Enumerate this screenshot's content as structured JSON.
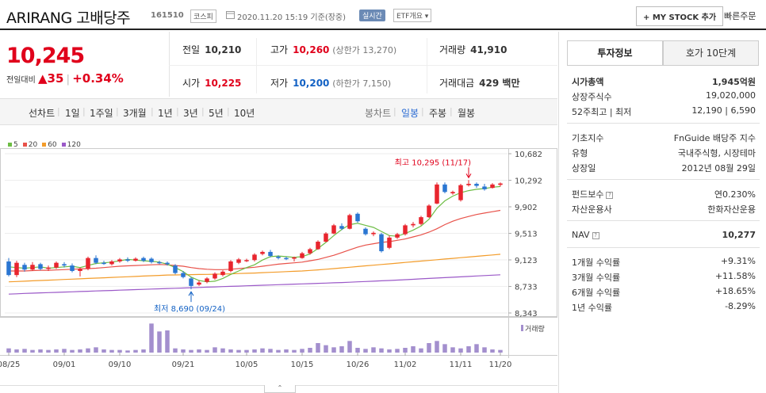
{
  "header": {
    "title": "ARIRANG 고배당주",
    "code": "161510",
    "market": "코스피",
    "datetime": "2020.11.20 15:19  기준(장중)",
    "realtime": "실시간",
    "etf_info": "ETF개요",
    "my_stock": "+ MY STOCK 추가",
    "quick_order": "빠른주문"
  },
  "quote": {
    "price": "10,245",
    "change_label": "전일대비",
    "change_arrow": "▲",
    "change": "35",
    "change_rate": "+0.34%",
    "prev_label": "전일",
    "prev": "10,210",
    "high_label": "고가",
    "high": "10,260",
    "upper_limit": "(상한가 13,270)",
    "volume_label": "거래량",
    "volume": "41,910",
    "open_label": "시가",
    "open": "10,225",
    "low_label": "저가",
    "low": "10,200",
    "lower_limit": "(하한가 7,150)",
    "amount_label": "거래대금",
    "amount": "429 백만"
  },
  "tabs": {
    "line_chart": "선차트",
    "periods": [
      "1일",
      "1주일",
      "3개월",
      "1년",
      "3년",
      "5년",
      "10년"
    ],
    "candle_chart": "봉차트",
    "candle_periods": [
      "일봉",
      "주봉",
      "월봉"
    ],
    "active_candle": "일봉"
  },
  "legend": [
    {
      "label": "5",
      "color": "#6dbd45"
    },
    {
      "label": "20",
      "color": "#e8524a"
    },
    {
      "label": "60",
      "color": "#f39c2a"
    },
    {
      "label": "120",
      "color": "#9b59c8"
    }
  ],
  "chart_data": {
    "type": "candlestick",
    "x_ticks": [
      "08/25",
      "09/01",
      "09/10",
      "09/21",
      "10/05",
      "10/15",
      "10/26",
      "11/02",
      "11/11",
      "11/20"
    ],
    "y_ticks": [
      "10,682",
      "10,292",
      "9,902",
      "9,513",
      "9,123",
      "8,733",
      "8,343"
    ],
    "ylim": [
      8343,
      10682
    ],
    "annotation_high": "최고 10,295 (11/17)",
    "annotation_low": "최저 8,690 (09/24)",
    "volume_label": "거래량",
    "candles": [
      {
        "o": 9100,
        "c": 8900,
        "h": 9150,
        "l": 8880
      },
      {
        "o": 8900,
        "c": 9080,
        "h": 9110,
        "l": 8870
      },
      {
        "o": 9050,
        "c": 8980,
        "h": 9080,
        "l": 8950
      },
      {
        "o": 8980,
        "c": 9050,
        "h": 9090,
        "l": 8960
      },
      {
        "o": 9060,
        "c": 8990,
        "h": 9080,
        "l": 8970
      },
      {
        "o": 8990,
        "c": 9010,
        "h": 9040,
        "l": 8960
      },
      {
        "o": 9010,
        "c": 9080,
        "h": 9100,
        "l": 8990
      },
      {
        "o": 9060,
        "c": 9040,
        "h": 9090,
        "l": 9010
      },
      {
        "o": 9040,
        "c": 8960,
        "h": 9070,
        "l": 8940
      },
      {
        "o": 8960,
        "c": 8990,
        "h": 9010,
        "l": 8880
      },
      {
        "o": 8990,
        "c": 9150,
        "h": 9170,
        "l": 8970
      },
      {
        "o": 9150,
        "c": 9080,
        "h": 9190,
        "l": 9060
      },
      {
        "o": 9080,
        "c": 9070,
        "h": 9110,
        "l": 9050
      },
      {
        "o": 9060,
        "c": 9100,
        "h": 9120,
        "l": 9040
      },
      {
        "o": 9100,
        "c": 9130,
        "h": 9150,
        "l": 9080
      },
      {
        "o": 9130,
        "c": 9110,
        "h": 9160,
        "l": 9090
      },
      {
        "o": 9110,
        "c": 9140,
        "h": 9160,
        "l": 9100
      },
      {
        "o": 9150,
        "c": 9110,
        "h": 9170,
        "l": 9090
      },
      {
        "o": 9140,
        "c": 9090,
        "h": 9160,
        "l": 9070
      },
      {
        "o": 9090,
        "c": 9080,
        "h": 9110,
        "l": 9060
      },
      {
        "o": 9080,
        "c": 9060,
        "h": 9100,
        "l": 9040
      },
      {
        "o": 9040,
        "c": 8930,
        "h": 9060,
        "l": 8910
      },
      {
        "o": 8930,
        "c": 8870,
        "h": 8960,
        "l": 8850
      },
      {
        "o": 8850,
        "c": 8740,
        "h": 8870,
        "l": 8690
      },
      {
        "o": 8760,
        "c": 8790,
        "h": 8820,
        "l": 8740
      },
      {
        "o": 8800,
        "c": 8850,
        "h": 8870,
        "l": 8780
      },
      {
        "o": 8850,
        "c": 8920,
        "h": 8940,
        "l": 8830
      },
      {
        "o": 8900,
        "c": 8950,
        "h": 8970,
        "l": 8880
      },
      {
        "o": 8960,
        "c": 9100,
        "h": 9120,
        "l": 8940
      },
      {
        "o": 9080,
        "c": 9130,
        "h": 9150,
        "l": 9060
      },
      {
        "o": 9110,
        "c": 9120,
        "h": 9140,
        "l": 9090
      },
      {
        "o": 9120,
        "c": 9200,
        "h": 9220,
        "l": 9100
      },
      {
        "o": 9210,
        "c": 9240,
        "h": 9260,
        "l": 9190
      },
      {
        "o": 9240,
        "c": 9180,
        "h": 9270,
        "l": 9160
      },
      {
        "o": 9170,
        "c": 9150,
        "h": 9190,
        "l": 9130
      },
      {
        "o": 9150,
        "c": 9140,
        "h": 9170,
        "l": 9120
      },
      {
        "o": 9140,
        "c": 9160,
        "h": 9170,
        "l": 9100
      },
      {
        "o": 9150,
        "c": 9220,
        "h": 9240,
        "l": 9140
      },
      {
        "o": 9220,
        "c": 9280,
        "h": 9300,
        "l": 9200
      },
      {
        "o": 9280,
        "c": 9390,
        "h": 9410,
        "l": 9270
      },
      {
        "o": 9390,
        "c": 9510,
        "h": 9530,
        "l": 9380
      },
      {
        "o": 9510,
        "c": 9630,
        "h": 9650,
        "l": 9500
      },
      {
        "o": 9620,
        "c": 9580,
        "h": 9660,
        "l": 9560
      },
      {
        "o": 9580,
        "c": 9780,
        "h": 9800,
        "l": 9570
      },
      {
        "o": 9800,
        "c": 9690,
        "h": 9820,
        "l": 9670
      },
      {
        "o": 9580,
        "c": 9500,
        "h": 9600,
        "l": 9480
      },
      {
        "o": 9500,
        "c": 9520,
        "h": 9540,
        "l": 9470
      },
      {
        "o": 9500,
        "c": 9250,
        "h": 9520,
        "l": 9230
      },
      {
        "o": 9300,
        "c": 9450,
        "h": 9480,
        "l": 9280
      },
      {
        "o": 9450,
        "c": 9500,
        "h": 9520,
        "l": 9430
      },
      {
        "o": 9500,
        "c": 9630,
        "h": 9650,
        "l": 9480
      },
      {
        "o": 9630,
        "c": 9650,
        "h": 9680,
        "l": 9600
      },
      {
        "o": 9650,
        "c": 9750,
        "h": 9770,
        "l": 9630
      },
      {
        "o": 9750,
        "c": 9920,
        "h": 9940,
        "l": 9740
      },
      {
        "o": 9950,
        "c": 10230,
        "h": 10260,
        "l": 9940
      },
      {
        "o": 10230,
        "c": 10120,
        "h": 10260,
        "l": 10100
      },
      {
        "o": 10100,
        "c": 10120,
        "h": 10140,
        "l": 10080
      },
      {
        "o": 10000,
        "c": 10220,
        "h": 10240,
        "l": 9980
      },
      {
        "o": 10220,
        "c": 10240,
        "h": 10295,
        "l": 10200
      },
      {
        "o": 10240,
        "c": 10210,
        "h": 10260,
        "l": 10180
      },
      {
        "o": 10200,
        "c": 10160,
        "h": 10240,
        "l": 10140
      },
      {
        "o": 10180,
        "c": 10230,
        "h": 10250,
        "l": 10170
      },
      {
        "o": 10225,
        "c": 10245,
        "h": 10260,
        "l": 10200
      }
    ],
    "ma5": [
      9020,
      9010,
      9000,
      9010,
      9020,
      9000,
      9010,
      9020,
      9030,
      9010,
      9040,
      9070,
      9080,
      9090,
      9110,
      9130,
      9120,
      9110,
      9100,
      9090,
      9060,
      9010,
      8950,
      8870,
      8820,
      8800,
      8810,
      8850,
      8910,
      8960,
      9010,
      9050,
      9120,
      9170,
      9180,
      9170,
      9160,
      9170,
      9210,
      9290,
      9380,
      9480,
      9570,
      9640,
      9660,
      9630,
      9600,
      9540,
      9480,
      9470,
      9510,
      9560,
      9620,
      9720,
      9880,
      9990,
      10060,
      10110,
      10140,
      10160,
      10170,
      10190,
      10200
    ],
    "ma20": [
      8960,
      8960,
      8960,
      8965,
      8970,
      8970,
      8975,
      8980,
      8985,
      8990,
      8995,
      9000,
      9010,
      9020,
      9030,
      9035,
      9040,
      9045,
      9050,
      9055,
      9050,
      9040,
      9030,
      9010,
      8995,
      8985,
      8980,
      8980,
      8985,
      8995,
      9005,
      9015,
      9030,
      9045,
      9060,
      9070,
      9080,
      9090,
      9110,
      9130,
      9160,
      9190,
      9230,
      9270,
      9310,
      9340,
      9360,
      9380,
      9390,
      9410,
      9430,
      9460,
      9490,
      9530,
      9580,
      9640,
      9690,
      9730,
      9760,
      9790,
      9810,
      9830,
      9850
    ],
    "ma60": [
      8800,
      8805,
      8810,
      8815,
      8820,
      8825,
      8830,
      8835,
      8840,
      8845,
      8850,
      8855,
      8860,
      8865,
      8870,
      8875,
      8880,
      8885,
      8890,
      8895,
      8900,
      8902,
      8904,
      8906,
      8908,
      8910,
      8912,
      8915,
      8918,
      8922,
      8926,
      8930,
      8935,
      8940,
      8945,
      8950,
      8955,
      8960,
      8968,
      8976,
      8985,
      8995,
      9005,
      9015,
      9025,
      9035,
      9045,
      9055,
      9065,
      9075,
      9085,
      9095,
      9105,
      9115,
      9125,
      9135,
      9145,
      9155,
      9165,
      9175,
      9185,
      9195,
      9205
    ],
    "ma120": [
      8620,
      8625,
      8630,
      8634,
      8638,
      8642,
      8646,
      8650,
      8654,
      8658,
      8662,
      8666,
      8670,
      8674,
      8678,
      8682,
      8686,
      8690,
      8694,
      8698,
      8702,
      8706,
      8710,
      8714,
      8718,
      8722,
      8726,
      8730,
      8734,
      8738,
      8742,
      8746,
      8750,
      8754,
      8758,
      8762,
      8766,
      8770,
      8774,
      8778,
      8782,
      8786,
      8790,
      8795,
      8800,
      8805,
      8810,
      8815,
      8820,
      8826,
      8832,
      8838,
      8844,
      8850,
      8856,
      8862,
      8868,
      8874,
      8880,
      8886,
      8892,
      8898,
      8904
    ],
    "volumes": [
      8,
      6,
      7,
      5,
      6,
      5,
      6,
      7,
      5,
      6,
      8,
      10,
      6,
      5,
      5,
      4,
      5,
      6,
      55,
      40,
      42,
      8,
      6,
      5,
      6,
      5,
      10,
      8,
      6,
      5,
      5,
      6,
      8,
      7,
      5,
      6,
      5,
      7,
      9,
      18,
      14,
      10,
      12,
      22,
      9,
      7,
      10,
      8,
      6,
      7,
      9,
      12,
      8,
      18,
      22,
      16,
      10,
      8,
      12,
      16,
      10,
      6,
      5
    ],
    "volume_scale_max": 60
  },
  "right_panel": {
    "tab_active": "투자정보",
    "tab_other": "호가 10단계",
    "rows1": [
      {
        "label": "시가총액",
        "value": "1,945억원"
      },
      {
        "label": "상장주식수",
        "value": "19,020,000"
      },
      {
        "label": "52주최고 | 최저",
        "value": "12,190 | 6,590"
      }
    ],
    "rows2": [
      {
        "label": "기초지수",
        "value": "FnGuide 배당주 지수"
      },
      {
        "label": "유형",
        "value": "국내주식형, 시장테마"
      },
      {
        "label": "상장일",
        "value": "2012년 08월 29일"
      }
    ],
    "rows3": [
      {
        "label": "펀드보수",
        "value": "연0.230%"
      },
      {
        "label": "자산운용사",
        "value": "한화자산운용"
      }
    ],
    "nav_label": "NAV",
    "nav_value": "10,277",
    "returns": [
      {
        "label": "1개월 수익률",
        "value": "+9.31%",
        "dir": "up"
      },
      {
        "label": "3개월 수익률",
        "value": "+11.58%",
        "dir": "up"
      },
      {
        "label": "6개월 수익률",
        "value": "+18.65%",
        "dir": "up"
      },
      {
        "label": "1년 수익률",
        "value": "-8.29%",
        "dir": "down"
      }
    ]
  },
  "colors": {
    "up": "#e0001b",
    "down": "#1261c4",
    "candle_up": "#e8252e",
    "candle_down": "#2a76d2"
  },
  "expand_icon": "chevron-up-icon"
}
